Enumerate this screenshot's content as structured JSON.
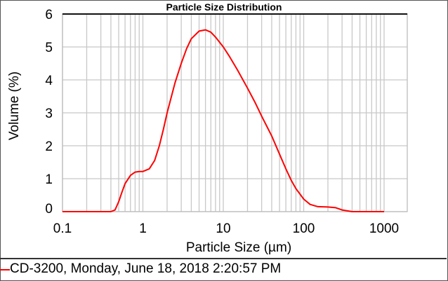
{
  "chart_data": {
    "type": "line",
    "title": "Particle Size Distribution",
    "xlabel": "Particle Size (µm)",
    "ylabel": "Volume (%)",
    "xscale": "log",
    "xlim": [
      0.1,
      1940
    ],
    "ylim": [
      0,
      6
    ],
    "grid": true,
    "x_ticks": [
      "0.1",
      "1",
      "10",
      "100",
      "1000"
    ],
    "y_ticks": [
      "0",
      "1",
      "2",
      "3",
      "4",
      "5",
      "6"
    ],
    "legend_position": "bottom",
    "series": [
      {
        "name": "CD-3200, Monday, June 18, 2018 2:20:57 PM",
        "color": "#ff0000",
        "x": [
          0.1,
          0.2,
          0.4,
          0.45,
          0.5,
          0.55,
          0.6,
          0.7,
          0.8,
          0.9,
          1.0,
          1.2,
          1.4,
          1.6,
          1.8,
          2.0,
          2.5,
          3.0,
          3.5,
          4.0,
          5.0,
          6.0,
          7.0,
          8.0,
          10,
          12,
          15,
          20,
          25,
          30,
          40,
          50,
          60,
          70,
          80,
          100,
          120,
          150,
          200,
          250,
          300,
          400,
          600,
          1000
        ],
        "y": [
          0,
          0,
          0,
          0.05,
          0.3,
          0.6,
          0.85,
          1.1,
          1.2,
          1.22,
          1.22,
          1.3,
          1.55,
          2.0,
          2.5,
          3.0,
          3.9,
          4.5,
          4.95,
          5.25,
          5.48,
          5.52,
          5.45,
          5.3,
          5.0,
          4.7,
          4.3,
          3.75,
          3.3,
          2.9,
          2.3,
          1.75,
          1.3,
          0.95,
          0.7,
          0.38,
          0.22,
          0.15,
          0.14,
          0.12,
          0.05,
          0,
          0,
          0
        ]
      }
    ]
  },
  "legend": {
    "label": "CD-3200, Monday, June 18, 2018 2:20:57 PM"
  }
}
